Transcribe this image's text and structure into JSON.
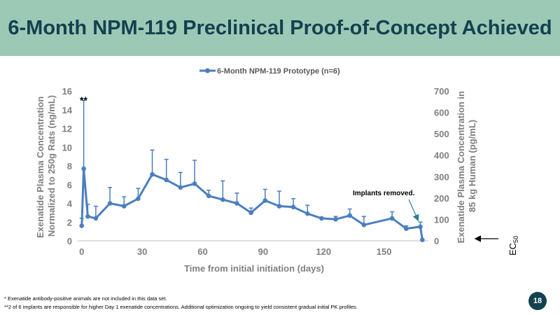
{
  "slide": {
    "title": "6-Month NPM-119 Preclinical Proof-of-Concept Achieved",
    "footnotes": [
      "*  Exenatide antibody-positive animals are not included in this data set.",
      "**2 of 6 implants are responsible for higher Day 1 exenatide concentrations.  Additional optimization ongoing to yield consistent gradual initial PK profiles."
    ],
    "page_number": "18"
  },
  "colors": {
    "title_band": "#9cc8b6",
    "title_text": "#13414f",
    "series": "#4a7ebf",
    "axis_text": "#7f7f7f",
    "annotation_arrow": "#2e7f9a"
  },
  "chart_data": {
    "type": "line",
    "title": "",
    "legend": {
      "position": "top",
      "entries": [
        "6-Month NPM-119 Prototype (n=6)"
      ]
    },
    "xlabel": "Time from initial initiation (days)",
    "ylabel": "Exenatide Plasma Concentration Normalized to 250g Rats (ng/mL)",
    "ylabel_lines": [
      "Exenatide Plasma Concentration",
      "Normalized to 250g Rats (ng/mL)"
    ],
    "y2label": "Exenatide Plasma Concentration in 85 kg Human (pg/mL)",
    "y2label_lines": [
      "Exenatide Plasma Concentration in",
      "85 kg Human (pg/mL)"
    ],
    "xlim": [
      -2,
      172
    ],
    "ylim": [
      0,
      16
    ],
    "y2lim": [
      0,
      700
    ],
    "x_ticks": [
      0,
      30,
      60,
      90,
      120,
      150
    ],
    "y_ticks": [
      0,
      2,
      4,
      6,
      8,
      10,
      12,
      14,
      16
    ],
    "y2_ticks": [
      0,
      100,
      200,
      300,
      400,
      500,
      600,
      700
    ],
    "grid": false,
    "error_bars": "upper",
    "series": [
      {
        "name": "6-Month NPM-119 Prototype (n=6)",
        "x": [
          0,
          1,
          3,
          7,
          14,
          21,
          28,
          35,
          42,
          49,
          56,
          63,
          70,
          77,
          84,
          91,
          98,
          105,
          112,
          119,
          126,
          133,
          140,
          154,
          161,
          168,
          169
        ],
        "y": [
          1.6,
          7.7,
          2.6,
          2.4,
          4.0,
          3.7,
          4.5,
          7.1,
          6.5,
          5.7,
          6.1,
          4.8,
          4.4,
          4.0,
          3.0,
          4.3,
          3.7,
          3.6,
          2.9,
          2.4,
          2.3,
          2.7,
          1.7,
          2.4,
          1.3,
          1.5,
          0.1
        ],
        "err_upper": [
          2.4,
          15.0,
          3.9,
          3.7,
          5.7,
          4.7,
          5.6,
          9.7,
          8.7,
          7.3,
          8.6,
          5.4,
          6.4,
          5.1,
          3.5,
          5.5,
          5.3,
          4.5,
          3.8,
          2.4,
          2.6,
          3.4,
          2.6,
          3.1,
          1.6,
          2.0,
          0.1
        ]
      }
    ],
    "annotations": [
      {
        "text": "**",
        "x": 0.5,
        "y": 15.1
      },
      {
        "text": "Implants removed.",
        "x": 168,
        "y": 1.9
      }
    ],
    "reference": {
      "label": "EC",
      "label_sub": "50"
    }
  }
}
